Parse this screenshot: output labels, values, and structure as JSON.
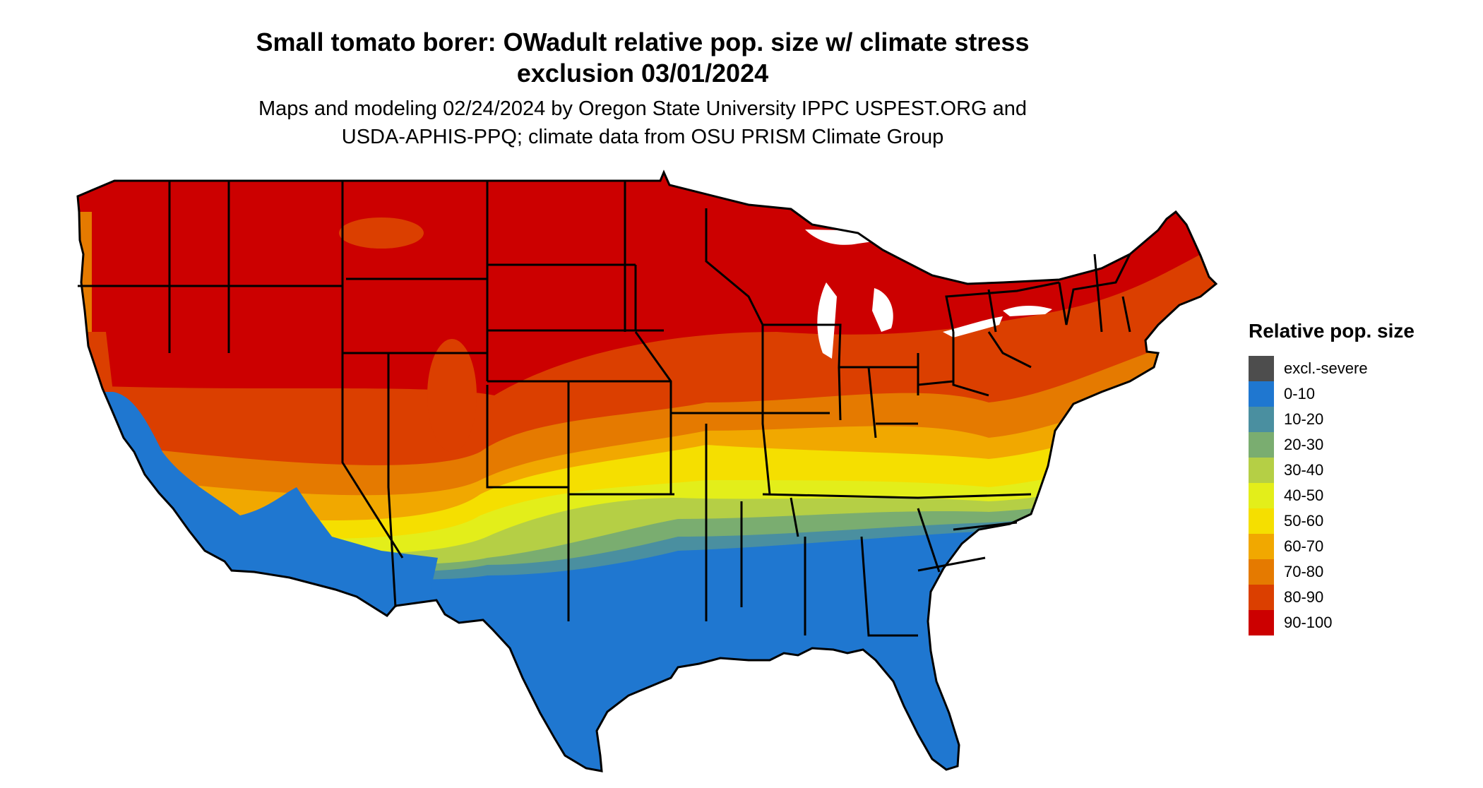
{
  "title_line1": "Small tomato borer: OWadult relative pop. size w/ climate stress",
  "title_line2": "exclusion 03/01/2024",
  "subtitle_line1": "Maps and modeling 02/24/2024 by Oregon State University IPPC USPEST.ORG and",
  "subtitle_line2": "USDA-APHIS-PPQ; climate data from OSU PRISM Climate Group",
  "legend": {
    "title": "Relative pop. size",
    "items": [
      {
        "label": "excl.-severe",
        "color": "#4d4d4d"
      },
      {
        "label": "0-10",
        "color": "#1f77d0"
      },
      {
        "label": "10-20",
        "color": "#4a8fa0"
      },
      {
        "label": "20-30",
        "color": "#7aad70"
      },
      {
        "label": "30-40",
        "color": "#b5cf45"
      },
      {
        "label": "40-50",
        "color": "#e3ee1a"
      },
      {
        "label": "50-60",
        "color": "#f5df00"
      },
      {
        "label": "60-70",
        "color": "#f1a800"
      },
      {
        "label": "70-80",
        "color": "#e57a00"
      },
      {
        "label": "80-90",
        "color": "#db3f00"
      },
      {
        "label": "90-100",
        "color": "#cc0000"
      }
    ]
  }
}
